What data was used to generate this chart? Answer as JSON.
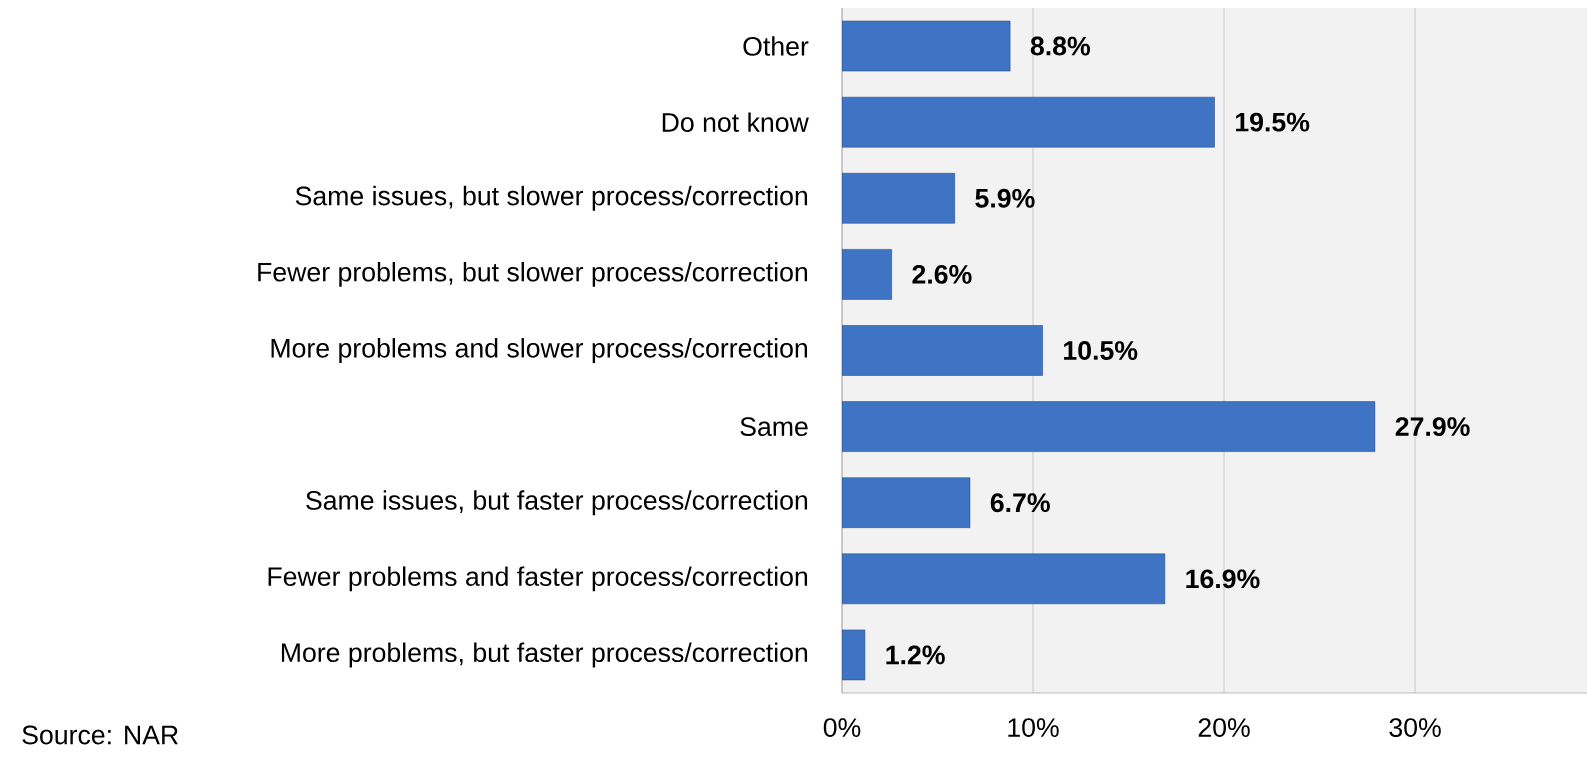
{
  "chart_data": {
    "type": "bar",
    "orientation": "horizontal",
    "categories": [
      "Other",
      "Do not know",
      "Same issues, but slower process/correction",
      "Fewer problems, but slower process/correction",
      "More problems and slower process/correction",
      "Same",
      "Same issues, but faster process/correction",
      "Fewer problems and faster process/correction",
      "More problems, but faster process/correction"
    ],
    "values": [
      8.8,
      19.5,
      5.9,
      2.6,
      10.5,
      27.9,
      6.7,
      16.9,
      1.2
    ],
    "value_labels": [
      "8.8%",
      "19.5%",
      "5.9%",
      "2.6%",
      "10.5%",
      "27.9%",
      "6.7%",
      "16.9%",
      "1.2%"
    ],
    "color": "#3f74c4",
    "xlim": [
      0,
      39
    ],
    "xticks": [
      {
        "value": 0,
        "label": "0%"
      },
      {
        "value": 10,
        "label": "10%"
      },
      {
        "value": 20,
        "label": "20%"
      },
      {
        "value": 30,
        "label": "30%"
      }
    ],
    "grid": "x",
    "annotations": [
      "Source: NAR"
    ]
  }
}
